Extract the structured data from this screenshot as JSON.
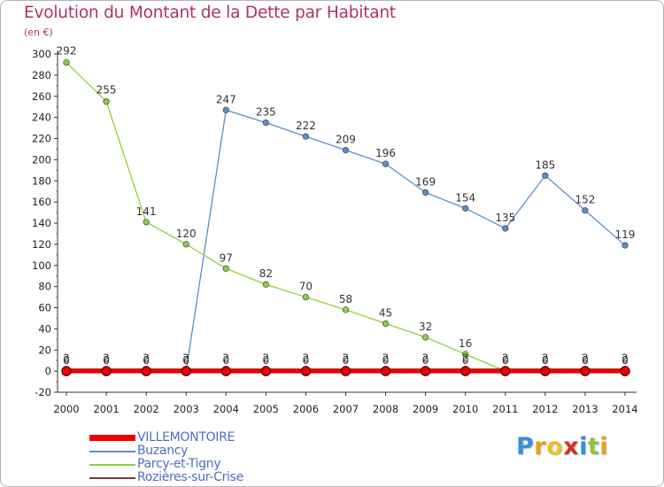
{
  "header": {
    "title": "Evolution du Montant de la Dette par Habitant",
    "subtitle": "(en €)"
  },
  "brand": {
    "letters": [
      "P",
      "r",
      "o",
      "x",
      "i",
      "t",
      "i"
    ],
    "colors": [
      "#3a8fd6",
      "#e8a020",
      "#f0c020",
      "#d03030",
      "#3a8fd6",
      "#8cc63f",
      "#e8a020"
    ]
  },
  "chart_data": {
    "type": "line",
    "x": [
      2000,
      2001,
      2002,
      2003,
      2004,
      2005,
      2006,
      2007,
      2008,
      2009,
      2010,
      2011,
      2012,
      2013,
      2014
    ],
    "ylim": [
      -20,
      300
    ],
    "yticks": [
      -20,
      0,
      20,
      40,
      60,
      80,
      100,
      120,
      140,
      160,
      180,
      200,
      220,
      240,
      260,
      280,
      300
    ],
    "grid": false,
    "legend_position": "bottom-left",
    "series": [
      {
        "name": "VILLEMONTOIRE",
        "color": "#ee0000",
        "values": [
          0,
          0,
          0,
          0,
          0,
          0,
          0,
          0,
          0,
          0,
          0,
          0,
          0,
          0,
          0
        ],
        "labels": [
          "0",
          "0",
          "0",
          "0",
          "0",
          "0",
          "0",
          "0",
          "0",
          "0",
          "0",
          "0",
          "0",
          "0",
          "0"
        ]
      },
      {
        "name": "Buzancy",
        "color": "#5a8fc8",
        "values": [
          0,
          0,
          0,
          0,
          247,
          235,
          222,
          209,
          196,
          169,
          154,
          135,
          185,
          152,
          119
        ],
        "labels": [
          "0",
          "0",
          "0",
          "0",
          "247",
          "235",
          "222",
          "209",
          "196",
          "169",
          "154",
          "135",
          "185",
          "152",
          "119"
        ]
      },
      {
        "name": "Parcy-et-Tigny",
        "color": "#8cd040",
        "values": [
          292,
          255,
          141,
          120,
          97,
          82,
          70,
          58,
          45,
          32,
          16,
          0,
          0,
          0,
          0
        ],
        "labels": [
          "292",
          "255",
          "141",
          "120",
          "97",
          "82",
          "70",
          "58",
          "45",
          "32",
          "16",
          "0",
          "0",
          "0",
          "0"
        ]
      },
      {
        "name": "Rozières-sur-Crise",
        "color": "#7a3c3c",
        "values": [
          2,
          2,
          2,
          2,
          2,
          2,
          2,
          2,
          2,
          2,
          2,
          2,
          2,
          2,
          2
        ],
        "labels": [
          "2",
          "2",
          "2",
          "2",
          "2",
          "2",
          "2",
          "2",
          "2",
          "2",
          "2",
          "2",
          "2",
          "2",
          "2"
        ]
      }
    ]
  }
}
